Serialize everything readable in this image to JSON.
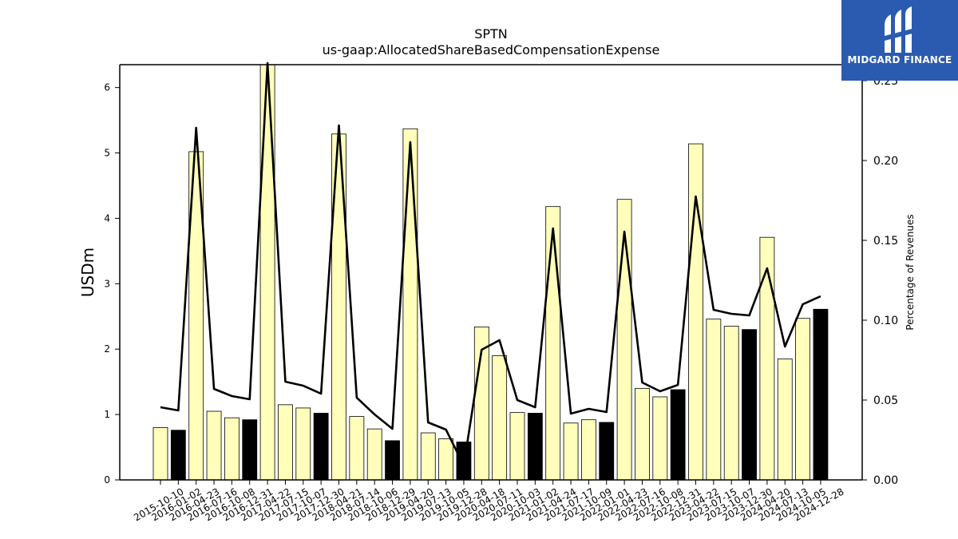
{
  "title": "SPTN",
  "subtitle": "us-gaap:AllocatedShareBasedCompensationExpense",
  "logo": {
    "text": "MIDGARD FINANCE",
    "color": "#2b5bb0"
  },
  "chart_data": {
    "type": "bar",
    "title": "SPTN",
    "subtitle": "us-gaap:AllocatedShareBasedCompensationExpense",
    "ylabel": "USDm",
    "y2label": "Percentage of Revenues",
    "ylim": [
      0,
      6.35
    ],
    "y2lim": [
      0,
      0.26
    ],
    "yticks": [
      "0",
      "1",
      "2",
      "3",
      "4",
      "5",
      "6"
    ],
    "y2ticks": [
      "0.00",
      "0.05",
      "0.10",
      "0.15",
      "0.20",
      "0.25"
    ],
    "grid": false,
    "colors": {
      "quarter_bar": "#ffffbb",
      "fiscal_year_end_bar": "#000000",
      "line": "#000000"
    },
    "categories": [
      "2015-10-10",
      "2016-01-02",
      "2016-04-23",
      "2016-07-16",
      "2016-10-08",
      "2016-12-31",
      "2017-04-22",
      "2017-07-15",
      "2017-10-07",
      "2017-12-30",
      "2018-04-21",
      "2018-07-14",
      "2018-10-06",
      "2018-12-29",
      "2019-04-20",
      "2019-07-13",
      "2019-10-05",
      "2019-12-28",
      "2020-04-18",
      "2020-07-11",
      "2020-10-03",
      "2021-01-02",
      "2021-04-24",
      "2021-07-17",
      "2021-10-09",
      "2022-01-01",
      "2022-04-23",
      "2022-07-16",
      "2022-10-08",
      "2022-12-31",
      "2023-04-22",
      "2023-07-15",
      "2023-10-07",
      "2023-12-30",
      "2024-04-20",
      "2024-07-13",
      "2024-10-05",
      "2024-12-28"
    ],
    "series": [
      {
        "type": "bar",
        "axis": "left",
        "values": [
          0.8,
          0.76,
          5.02,
          1.05,
          0.95,
          0.92,
          6.35,
          1.15,
          1.1,
          1.02,
          5.29,
          0.97,
          0.78,
          0.6,
          5.37,
          0.72,
          0.63,
          0.58,
          2.34,
          1.9,
          1.03,
          1.02,
          4.18,
          0.87,
          0.92,
          0.88,
          4.29,
          1.4,
          1.27,
          1.38,
          5.14,
          2.46,
          2.35,
          2.3,
          3.71,
          1.85,
          2.47,
          2.61
        ],
        "fiscal_year_end": [
          false,
          true,
          false,
          false,
          false,
          true,
          false,
          false,
          false,
          true,
          false,
          false,
          false,
          true,
          false,
          false,
          false,
          true,
          false,
          false,
          false,
          true,
          false,
          false,
          false,
          true,
          false,
          false,
          false,
          true,
          false,
          false,
          false,
          true,
          false,
          false,
          false,
          true
        ]
      },
      {
        "type": "line",
        "axis": "right",
        "values": [
          0.0455,
          0.0435,
          0.2205,
          0.057,
          0.0525,
          0.0505,
          0.261,
          0.0615,
          0.059,
          0.054,
          0.222,
          0.0515,
          0.041,
          0.032,
          0.2115,
          0.036,
          0.0315,
          0.009,
          0.0815,
          0.0875,
          0.05,
          0.0455,
          0.1575,
          0.0415,
          0.0445,
          0.0425,
          0.1555,
          0.061,
          0.0555,
          0.0595,
          0.1775,
          0.1065,
          0.104,
          0.103,
          0.1325,
          0.0835,
          0.11,
          0.115
        ]
      }
    ]
  }
}
